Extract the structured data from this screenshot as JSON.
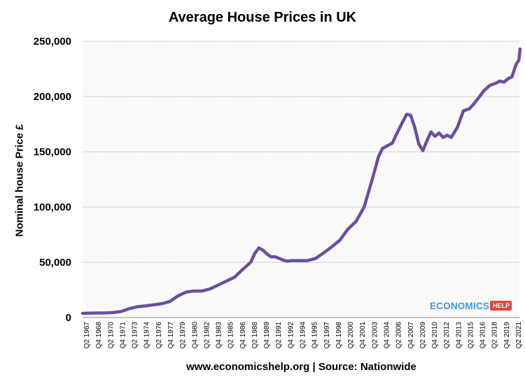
{
  "chart_data": {
    "type": "line",
    "title": "Average House Prices in UK",
    "xlabel": "www.economicshelp.org | Source: Nationwide",
    "ylabel": "Nominal house Price £",
    "ylim": [
      0,
      250000
    ],
    "yticks": [
      "0",
      "50,000",
      "100,000",
      "150,000",
      "200,000",
      "250,000"
    ],
    "ytick_values": [
      0,
      50000,
      100000,
      150000,
      200000,
      250000
    ],
    "x_range": [
      1967.25,
      2021.25
    ],
    "xtick_labels": [
      "Q2 1967",
      "Q4 1968",
      "Q2 1970",
      "Q4 1971",
      "Q2 1973",
      "Q4 1974",
      "Q2 1976",
      "Q4 1977",
      "Q2 1979",
      "Q4 1980",
      "Q2 1982",
      "Q4 1983",
      "Q2 1985",
      "Q4 1986",
      "Q2 1988",
      "Q4 1989",
      "Q2 1991",
      "Q4 1992",
      "Q2 1994",
      "Q4 1995",
      "Q2 1997",
      "Q4 1998",
      "Q2 2000",
      "Q4 2001",
      "Q2 2003",
      "Q4 2004",
      "Q2 2006",
      "Q4 2007",
      "Q2 2009",
      "Q4 2010",
      "Q2 2012",
      "Q4 2013",
      "Q2 2015",
      "Q4 2016",
      "Q2 2018",
      "Q4 2019",
      "Q2 2021"
    ],
    "grid": true,
    "series": [
      {
        "name": "Average house price",
        "color": "#6a4fa0",
        "points": [
          [
            1967.25,
            3800
          ],
          [
            1968.5,
            4000
          ],
          [
            1970,
            4200
          ],
          [
            1971,
            4500
          ],
          [
            1972,
            5500
          ],
          [
            1973,
            8000
          ],
          [
            1974,
            9800
          ],
          [
            1975,
            10500
          ],
          [
            1976,
            11500
          ],
          [
            1977,
            12500
          ],
          [
            1978,
            14500
          ],
          [
            1979,
            19500
          ],
          [
            1980,
            23000
          ],
          [
            1981,
            24000
          ],
          [
            1982,
            24000
          ],
          [
            1983,
            26000
          ],
          [
            1984,
            29500
          ],
          [
            1985,
            33000
          ],
          [
            1986,
            36500
          ],
          [
            1987,
            43500
          ],
          [
            1988,
            50000
          ],
          [
            1988.5,
            58000
          ],
          [
            1989,
            63000
          ],
          [
            1989.5,
            61000
          ],
          [
            1990,
            57500
          ],
          [
            1990.5,
            55000
          ],
          [
            1991,
            55000
          ],
          [
            1991.5,
            53500
          ],
          [
            1992,
            52000
          ],
          [
            1992.5,
            51000
          ],
          [
            1993,
            51500
          ],
          [
            1994,
            51500
          ],
          [
            1995,
            51500
          ],
          [
            1996,
            53500
          ],
          [
            1997,
            58500
          ],
          [
            1998,
            64000
          ],
          [
            1999,
            70000
          ],
          [
            2000,
            80000
          ],
          [
            2001,
            87000
          ],
          [
            2002,
            100000
          ],
          [
            2003,
            125000
          ],
          [
            2003.75,
            145000
          ],
          [
            2004.25,
            153000
          ],
          [
            2004.75,
            155000
          ],
          [
            2005.5,
            158000
          ],
          [
            2006,
            166000
          ],
          [
            2006.75,
            177000
          ],
          [
            2007.25,
            184000
          ],
          [
            2007.75,
            183000
          ],
          [
            2008.25,
            172000
          ],
          [
            2008.75,
            157000
          ],
          [
            2009.25,
            151000
          ],
          [
            2009.75,
            160000
          ],
          [
            2010.25,
            168000
          ],
          [
            2010.75,
            164000
          ],
          [
            2011.25,
            167000
          ],
          [
            2011.75,
            163000
          ],
          [
            2012.25,
            165000
          ],
          [
            2012.75,
            163000
          ],
          [
            2013.5,
            172000
          ],
          [
            2014.25,
            187000
          ],
          [
            2015,
            189000
          ],
          [
            2015.5,
            193000
          ],
          [
            2016.25,
            200000
          ],
          [
            2016.75,
            205000
          ],
          [
            2017.5,
            210000
          ],
          [
            2018.25,
            212000
          ],
          [
            2018.75,
            214000
          ],
          [
            2019.25,
            213000
          ],
          [
            2019.75,
            216000
          ],
          [
            2020.25,
            218000
          ],
          [
            2020.75,
            229000
          ],
          [
            2021.1,
            233000
          ],
          [
            2021.25,
            243000
          ]
        ]
      }
    ]
  },
  "watermark": {
    "brand": "ECONOMICS",
    "tag": "HELP"
  }
}
